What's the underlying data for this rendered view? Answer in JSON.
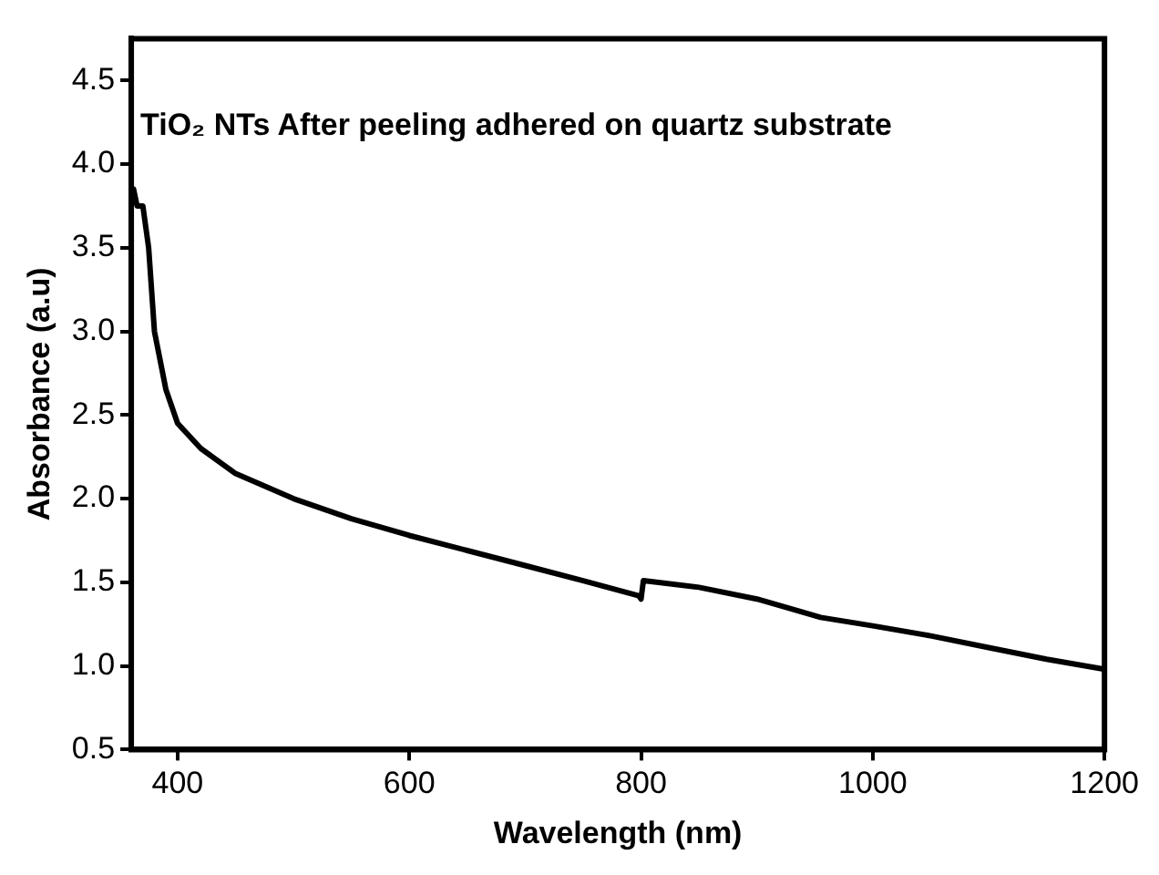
{
  "chart_data": {
    "type": "line",
    "xlabel": "Wavelength (nm)",
    "ylabel": "Absorbance (a.u)",
    "annotations": [
      "TiO₂ NTs After peeling adhered on quartz substrate"
    ],
    "x": [
      362,
      365,
      370,
      375,
      380,
      390,
      400,
      420,
      450,
      500,
      550,
      600,
      650,
      700,
      750,
      798,
      800,
      802,
      850,
      900,
      930,
      955,
      1000,
      1050,
      1100,
      1150,
      1200
    ],
    "series": [
      {
        "color": "#000000",
        "values": [
          3.85,
          3.75,
          3.75,
          3.5,
          3.0,
          2.65,
          2.45,
          2.3,
          2.15,
          2.0,
          1.88,
          1.78,
          1.69,
          1.6,
          1.51,
          1.42,
          1.4,
          1.51,
          1.47,
          1.4,
          1.34,
          1.29,
          1.24,
          1.18,
          1.11,
          1.04,
          0.98
        ]
      }
    ],
    "xlim": [
      360,
      1200
    ],
    "ylim": [
      0.5,
      4.75
    ],
    "xticks": [
      400,
      600,
      800,
      1000,
      1200
    ],
    "yticks": [
      0.5,
      {
        "value": 1,
        "label": "1.0"
      },
      1.5,
      {
        "value": 2,
        "label": "2.0"
      },
      2.5,
      {
        "value": 3,
        "label": "3.0"
      },
      3.5,
      {
        "value": 4,
        "label": "4.0"
      },
      4.5
    ],
    "grid": false,
    "legend": false,
    "marker": "none",
    "line_style": "solid"
  }
}
